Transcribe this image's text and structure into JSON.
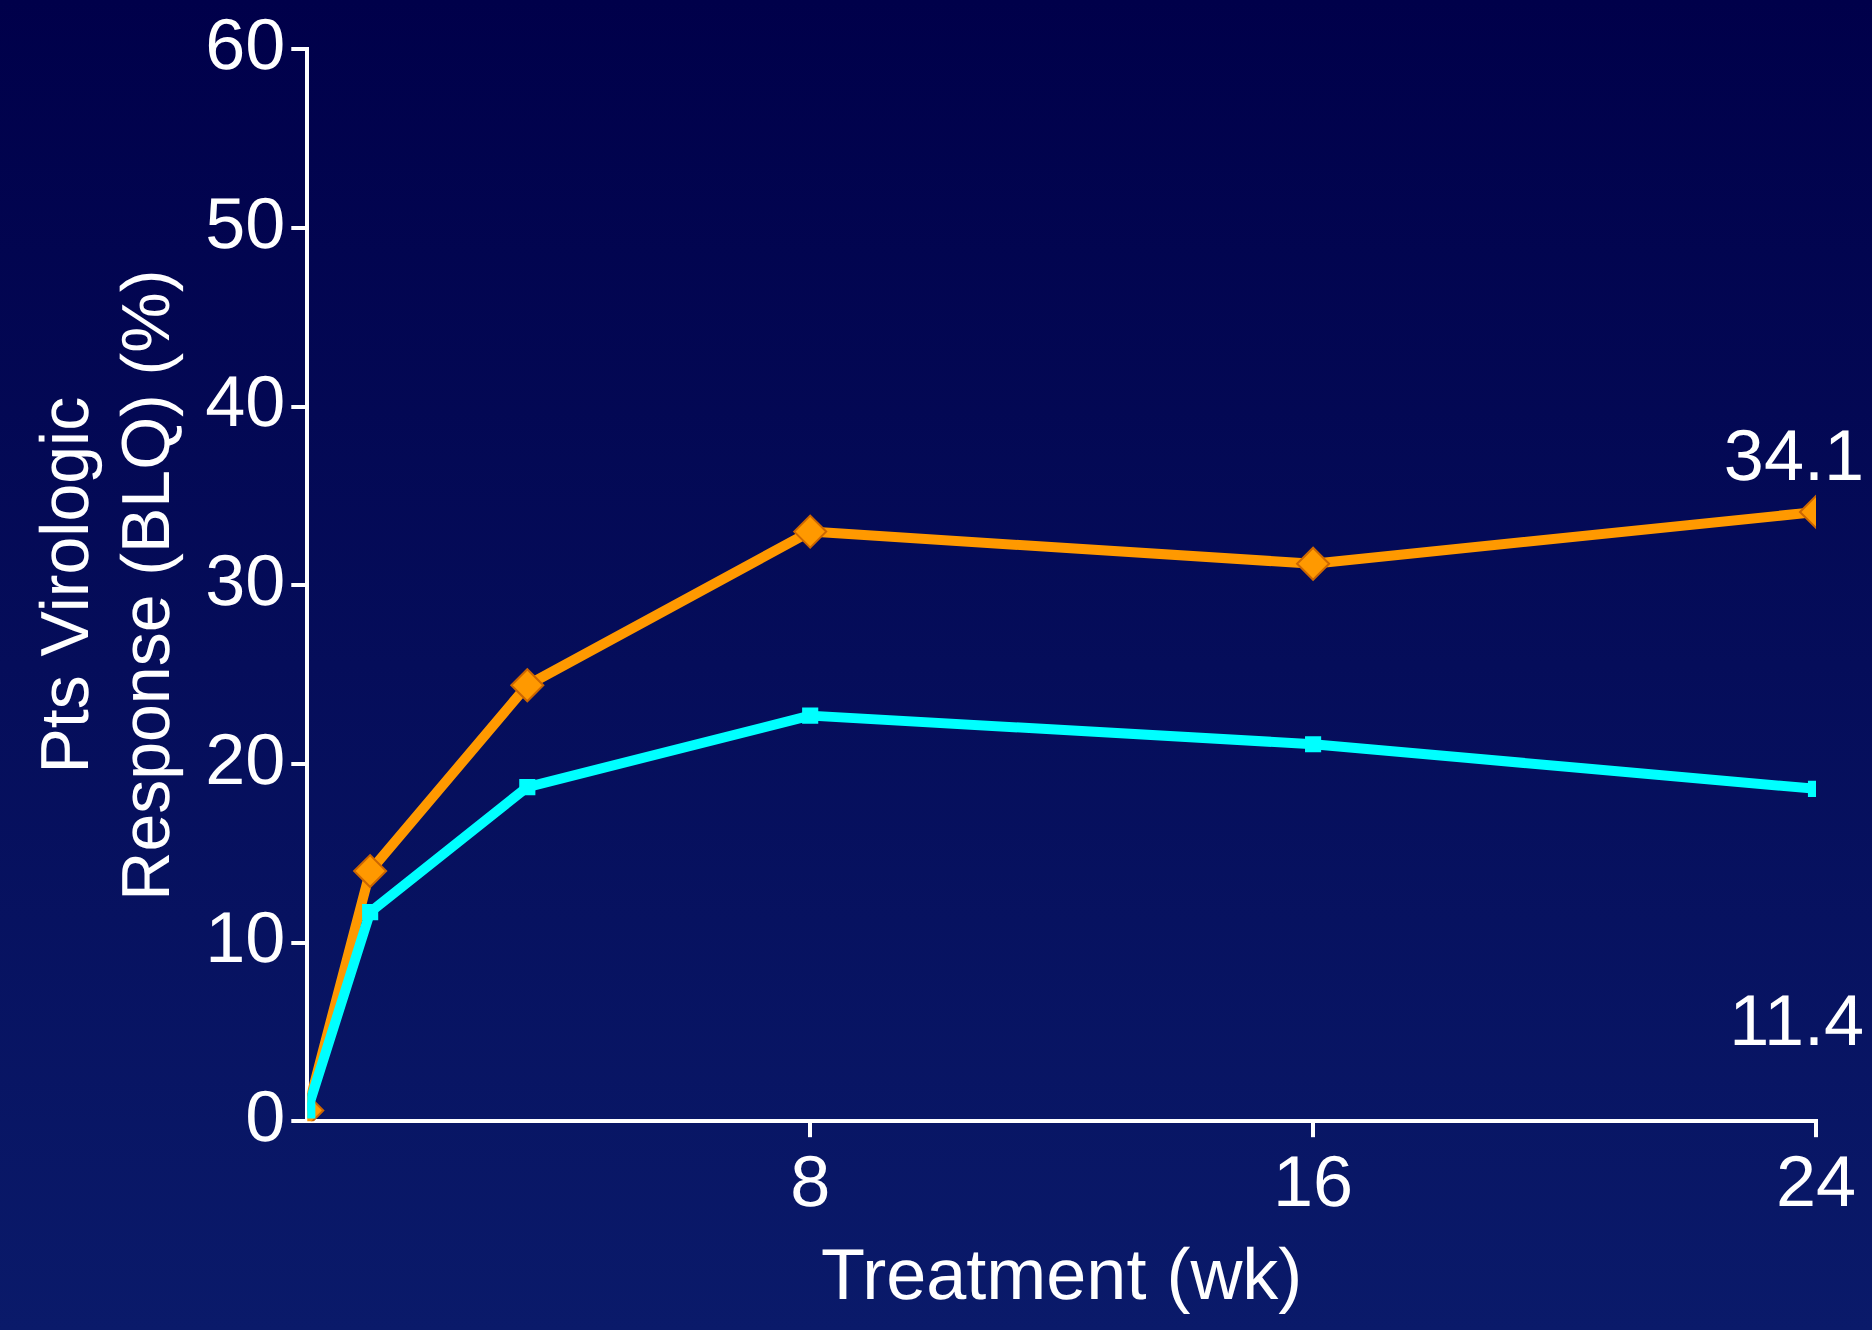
{
  "chart_data": {
    "type": "line",
    "xlabel": "Treatment (wk)",
    "ylabel": "Pts Virologic Response (BLQ) (%)",
    "x": [
      0,
      1,
      3.5,
      8,
      16,
      24
    ],
    "series": [
      {
        "color": "#ff9900",
        "marker": "diamond",
        "values": [
          0.6,
          14.0,
          24.4,
          33.0,
          31.2,
          34.1
        ],
        "value_labels": [
          null,
          null,
          null,
          null,
          null,
          "34.1"
        ]
      },
      {
        "color": "#00ffff",
        "marker": "square",
        "values": [
          0.6,
          11.7,
          18.7,
          22.7,
          21.1,
          18.6
        ]
      }
    ],
    "annotations": [
      "11.4"
    ],
    "xlim": [
      0,
      24
    ],
    "xticks": [
      8,
      16,
      24
    ],
    "ylim": [
      0,
      60
    ],
    "yticks": [
      0,
      10,
      20,
      30,
      40,
      50,
      60
    ],
    "grid": false,
    "legend": false
  }
}
